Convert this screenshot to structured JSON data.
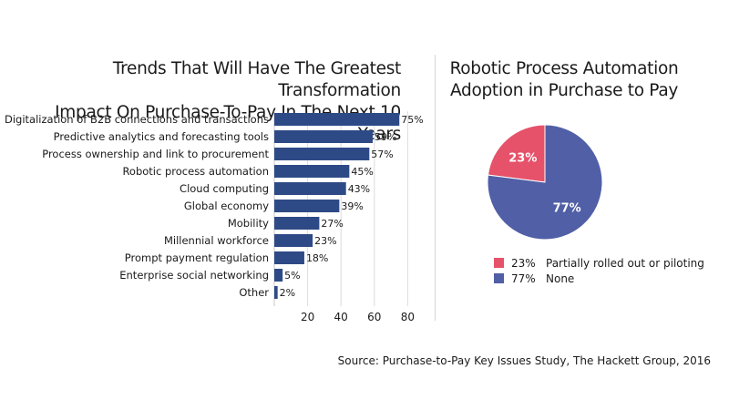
{
  "chart_data": [
    {
      "type": "bar",
      "orientation": "horizontal",
      "title_lines": [
        "Trends That Will Have The Greatest Transformation",
        "Impact On Purchase-To-Pay In The Next 10 Years"
      ],
      "categories": [
        "Digitalization of B2B connections and transactions",
        "Predictive analytics and forecasting tools",
        "Process ownership and link to procurement",
        "Robotic process automation",
        "Cloud computing",
        "Global economy",
        "Mobility",
        "Millennial workforce",
        "Prompt payment regulation",
        "Enterprise social networking",
        "Other"
      ],
      "values": [
        75,
        59,
        57,
        45,
        43,
        39,
        27,
        23,
        18,
        5,
        2
      ],
      "value_labels": [
        "75%",
        "59%",
        "57%",
        "45%",
        "43%",
        "39%",
        "27%",
        "23%",
        "18%",
        "5%",
        "2%"
      ],
      "xticks": [
        20,
        40,
        60,
        80
      ],
      "xlim": [
        0,
        80
      ],
      "grid": true,
      "bar_color": "#2e4a86"
    },
    {
      "type": "pie",
      "title_lines": [
        "Robotic Process Automation",
        "Adoption in Purchase to Pay"
      ],
      "slices": [
        {
          "label": "Partially rolled out or piloting",
          "value": 23,
          "value_label": "23%",
          "legend_value": "23%",
          "color": "#e5526a"
        },
        {
          "label": "None",
          "value": 77,
          "value_label": "77%",
          "legend_value": "77%",
          "color": "#505fa6"
        }
      ],
      "legend_position": "bottom"
    }
  ],
  "source": "Source: Purchase-to-Pay Key Issues Study, The Hackett Group, 2016"
}
